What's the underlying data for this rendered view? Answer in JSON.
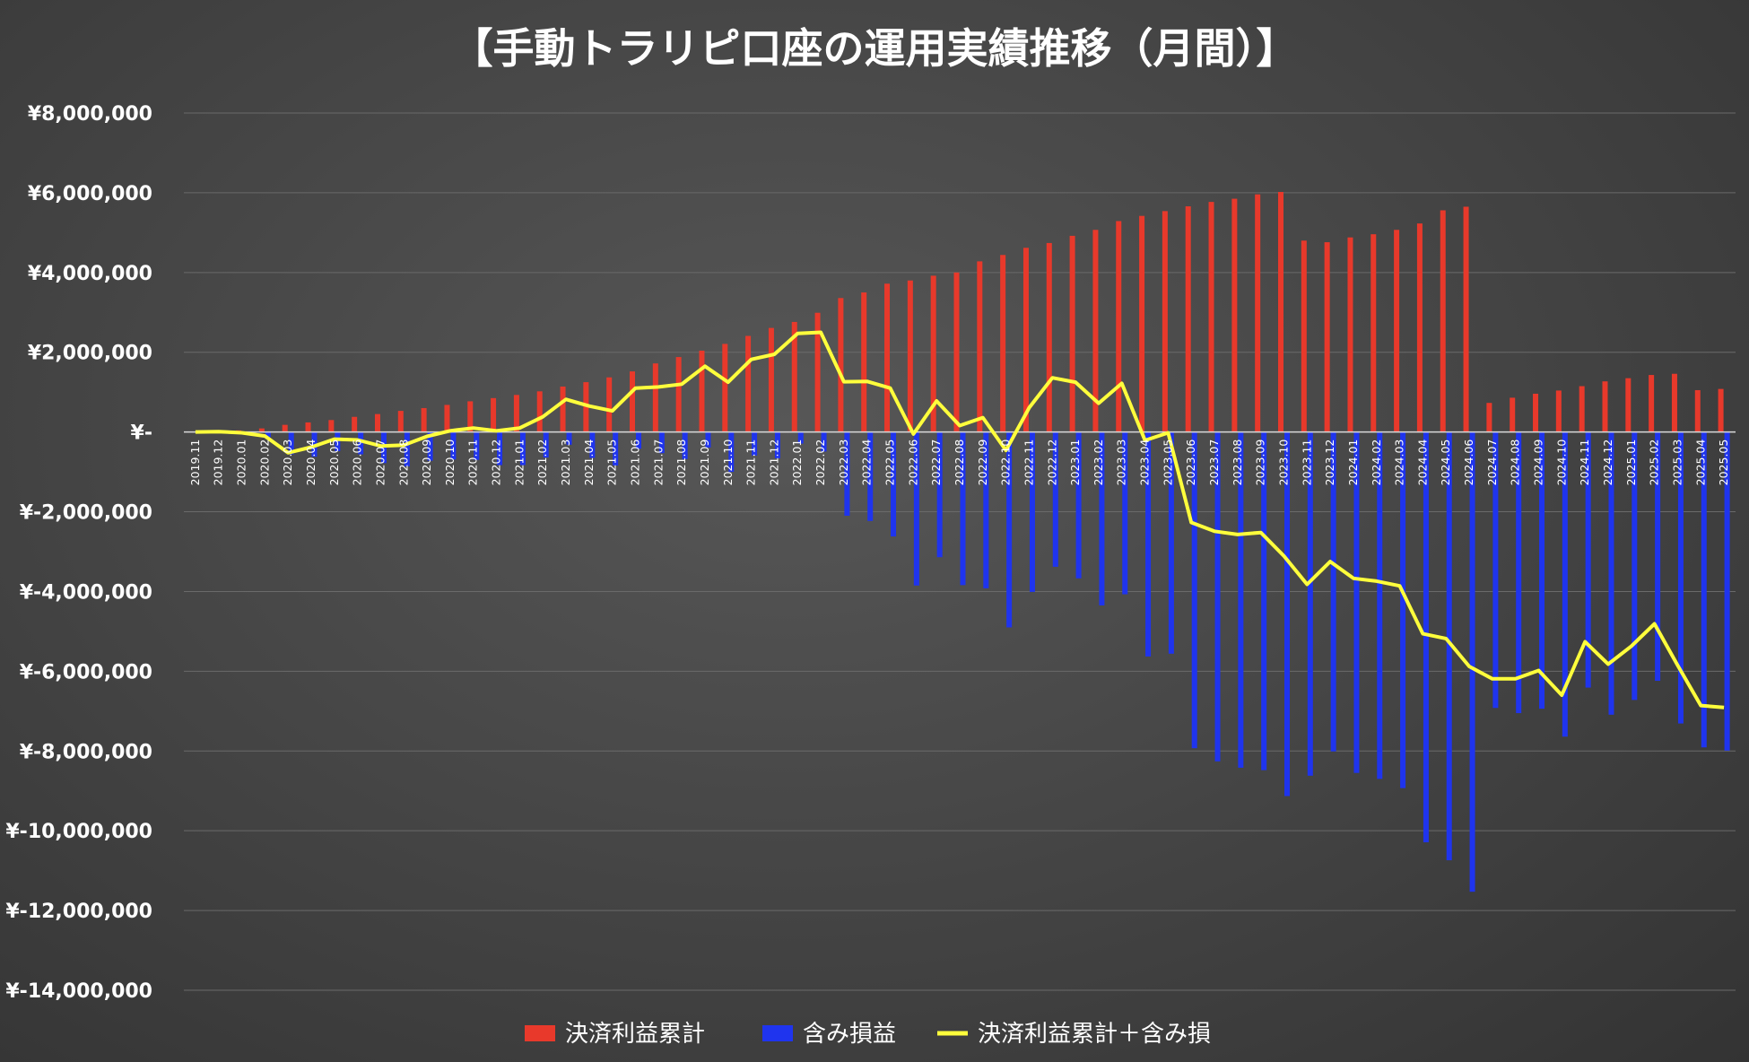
{
  "chart_data": {
    "type": "bar",
    "title": "【手動トラリピ口座の運用実績推移（月間）】",
    "ylim": [
      -14000000,
      8000000
    ],
    "y_ticks": [
      8000000,
      6000000,
      4000000,
      2000000,
      0,
      -2000000,
      -4000000,
      -6000000,
      -8000000,
      -10000000,
      -12000000,
      -14000000
    ],
    "y_tick_labels": [
      "¥8,000,000",
      "¥6,000,000",
      "¥4,000,000",
      "¥2,000,000",
      "¥-",
      "¥-2,000,000",
      "¥-4,000,000",
      "¥-6,000,000",
      "¥-8,000,000",
      "¥-10,000,000",
      "¥-12,000,000",
      "¥-14,000,000"
    ],
    "grid": true,
    "legend_position": "bottom",
    "categories": [
      "2019.11",
      "2019.12",
      "2020.01",
      "2020.02",
      "2020.03",
      "2020.04",
      "2020.05",
      "2020.06",
      "2020.07",
      "2020.08",
      "2020.09",
      "2020.10",
      "2020.11",
      "2020.12",
      "2021.01",
      "2021.02",
      "2021.03",
      "2021.04",
      "2021.05",
      "2021.06",
      "2021.07",
      "2021.08",
      "2021.09",
      "2021.10",
      "2021.11",
      "2021.12",
      "2022.01",
      "2022.02",
      "2022.03",
      "2022.04",
      "2022.05",
      "2022.06",
      "2022.07",
      "2022.08",
      "2022.09",
      "2022.10",
      "2022.11",
      "2022.12",
      "2023.01",
      "2023.02",
      "2023.03",
      "2023.04",
      "2023.05",
      "2023.06",
      "2023.07",
      "2023.08",
      "2023.09",
      "2023.10",
      "2023.11",
      "2023.12",
      "2024.01",
      "2024.02",
      "2024.03",
      "2024.04",
      "2024.05",
      "2024.06",
      "2024.07",
      "2024.08",
      "2024.09",
      "2024.10",
      "2024.11",
      "2024.12",
      "2025.01",
      "2025.02",
      "2025.03",
      "2025.04",
      "2025.05"
    ],
    "series": [
      {
        "name": "決済利益累計",
        "kind": "bar",
        "color": "#e8392b",
        "values": [
          0,
          10000,
          40000,
          90000,
          180000,
          240000,
          300000,
          380000,
          450000,
          530000,
          600000,
          680000,
          770000,
          850000,
          930000,
          1020000,
          1140000,
          1250000,
          1370000,
          1520000,
          1720000,
          1880000,
          2040000,
          2210000,
          2410000,
          2610000,
          2760000,
          2990000,
          3360000,
          3500000,
          3720000,
          3800000,
          3920000,
          4000000,
          4280000,
          4440000,
          4620000,
          4740000,
          4920000,
          5070000,
          5290000,
          5420000,
          5540000,
          5660000,
          5770000,
          5850000,
          5960000,
          6020000,
          4800000,
          4760000,
          4880000,
          4960000,
          5070000,
          5230000,
          5560000,
          5650000,
          730000,
          860000,
          960000,
          1040000,
          1150000,
          1270000,
          1350000,
          1430000,
          1460000,
          1050000,
          1080000
        ]
      },
      {
        "name": "含み損益",
        "kind": "bar",
        "color": "#1f34ee",
        "values": [
          0,
          0,
          -30000,
          -130000,
          -560000,
          -620000,
          -480000,
          -560000,
          -780000,
          -860000,
          -720000,
          -690000,
          -700000,
          -830000,
          -830000,
          -640000,
          -320000,
          -650000,
          -840000,
          -420000,
          -530000,
          -680000,
          -390000,
          -1000000,
          -590000,
          -660000,
          -290000,
          -490000,
          -2100000,
          -2230000,
          -2620000,
          -3850000,
          -3140000,
          -3840000,
          -3920000,
          -4900000,
          -4010000,
          -3380000,
          -3670000,
          -4350000,
          -4070000,
          -5630000,
          -5560000,
          -7930000,
          -8260000,
          -8420000,
          -8480000,
          -9130000,
          -8620000,
          -8010000,
          -8550000,
          -8700000,
          -8930000,
          -10290000,
          -10740000,
          -11530000,
          -6920000,
          -7050000,
          -6940000,
          -7640000,
          -6410000,
          -7090000,
          -6720000,
          -6240000,
          -7310000,
          -7910000,
          -7990000
        ]
      },
      {
        "name": "決済利益累計＋含み損",
        "kind": "line",
        "color": "#ffff3c",
        "values": [
          0,
          10000,
          -20000,
          -100000,
          -520000,
          -380000,
          -180000,
          -200000,
          -350000,
          -330000,
          -110000,
          30000,
          100000,
          30000,
          100000,
          380000,
          820000,
          650000,
          530000,
          1100000,
          1130000,
          1200000,
          1650000,
          1250000,
          1820000,
          1950000,
          2470000,
          2500000,
          1260000,
          1270000,
          1100000,
          -50000,
          780000,
          160000,
          360000,
          -460000,
          610000,
          1360000,
          1250000,
          720000,
          1220000,
          -210000,
          -20000,
          -2270000,
          -2490000,
          -2570000,
          -2520000,
          -3110000,
          -3820000,
          -3250000,
          -3670000,
          -3740000,
          -3860000,
          -5060000,
          -5180000,
          -5880000,
          -6190000,
          -6190000,
          -5980000,
          -6600000,
          -5260000,
          -5820000,
          -5370000,
          -4810000,
          -5850000,
          -6860000,
          -6910000
        ]
      }
    ]
  }
}
